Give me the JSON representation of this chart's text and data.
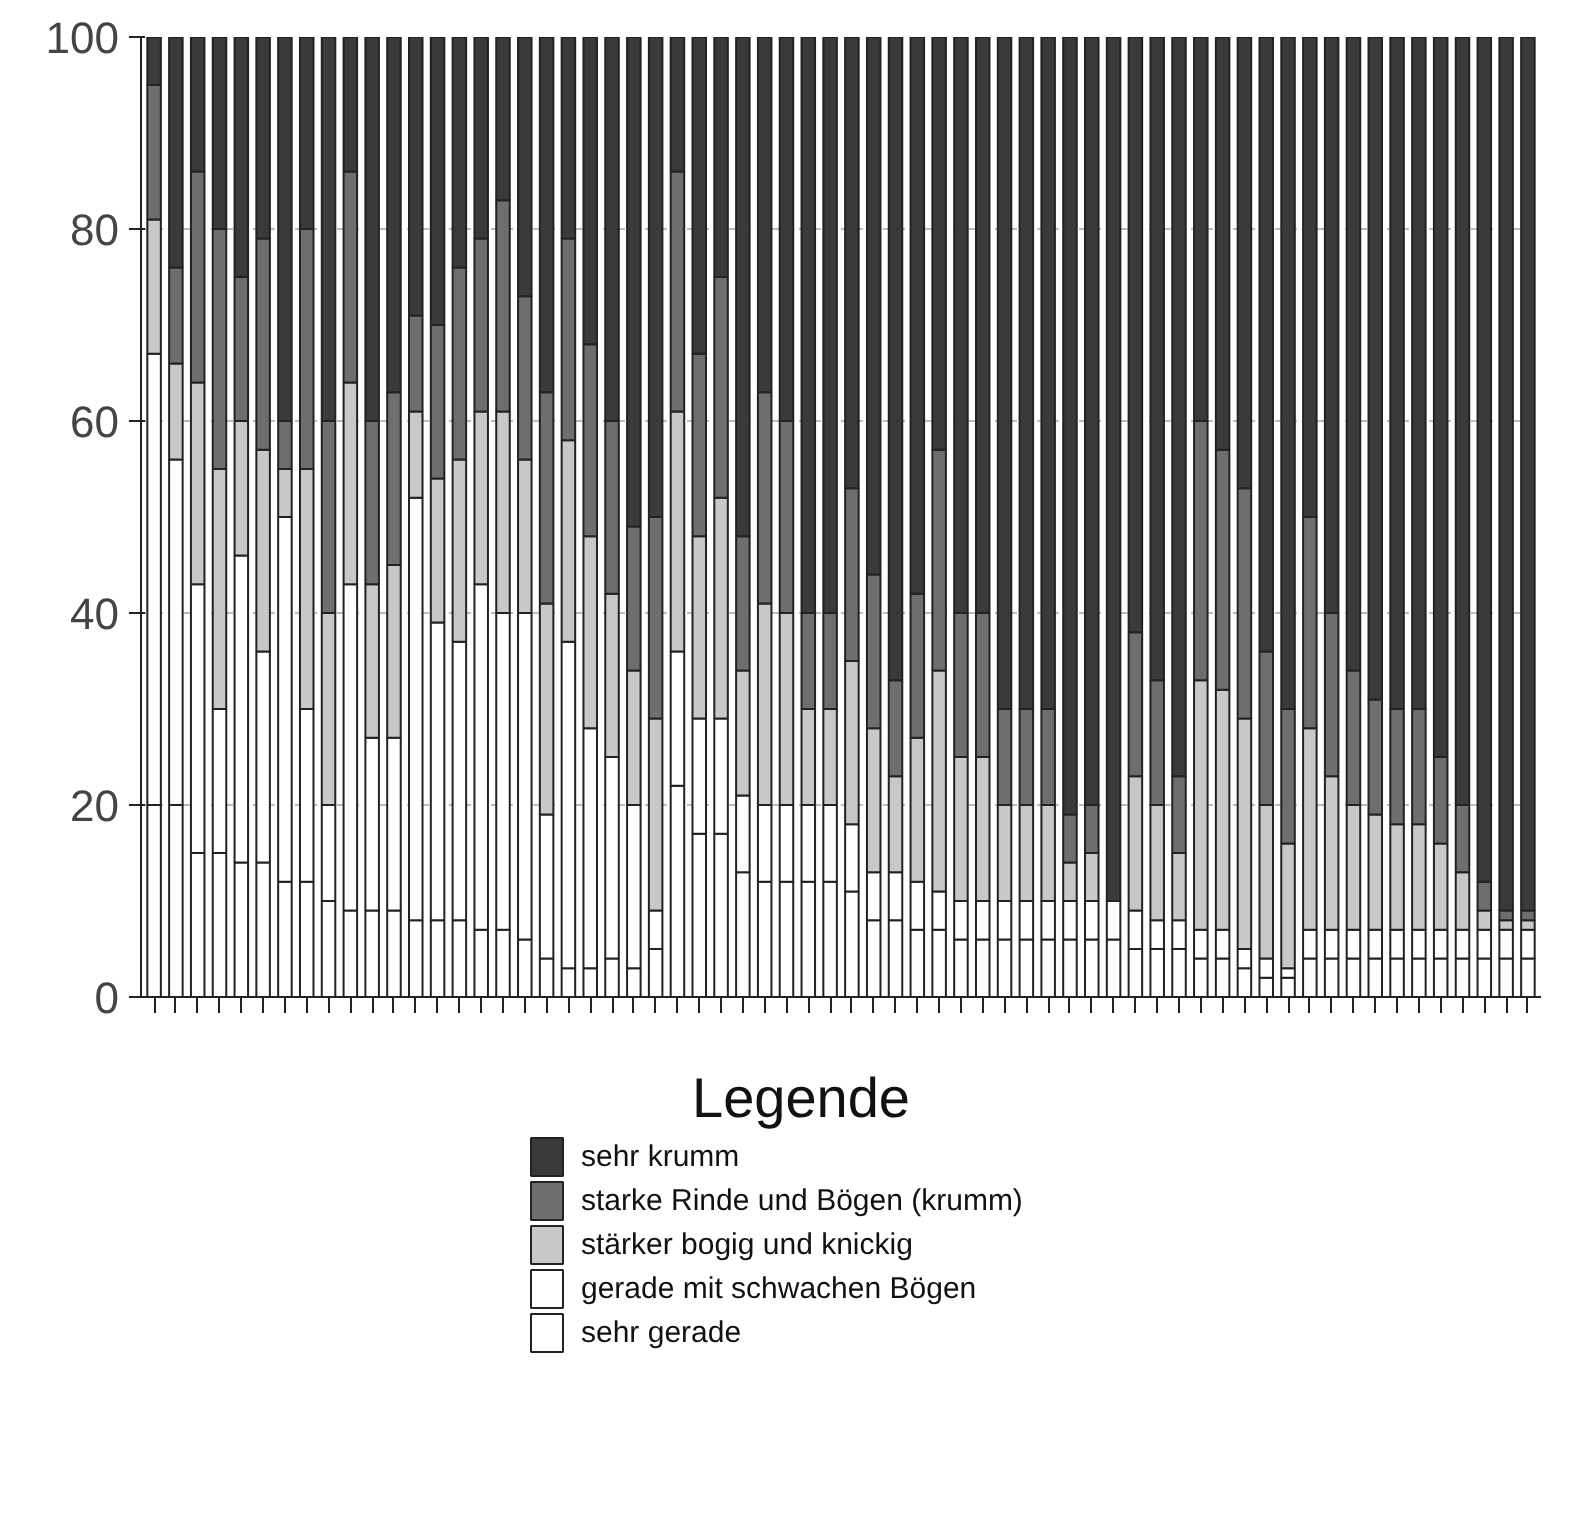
{
  "chart_data": {
    "type": "bar",
    "stacked": true,
    "legend_title": "Legende",
    "legend": "bottom",
    "grid": "y",
    "tick_labels": "y",
    "ylim": [
      0,
      100
    ],
    "yticks": [
      0,
      20,
      40,
      60,
      80,
      100
    ],
    "categories": [
      null,
      null,
      null,
      null,
      null,
      null,
      null,
      null,
      null,
      null,
      null,
      null,
      null,
      null,
      null,
      null,
      null,
      null,
      null,
      null,
      null,
      null,
      null,
      null,
      null,
      null,
      null,
      null,
      null,
      null,
      null,
      null,
      null,
      null,
      null,
      null,
      null,
      null,
      null,
      null,
      null,
      null,
      null,
      null,
      null,
      null,
      null,
      null,
      null,
      null,
      null,
      null,
      null,
      null,
      null,
      null,
      null,
      null,
      null,
      null,
      null,
      null,
      null,
      null
    ],
    "series": [
      {
        "name": "sehr gerade",
        "color": "#ffffff",
        "values": [
          20,
          20,
          15,
          15,
          14,
          14,
          12,
          12,
          10,
          9,
          9,
          9,
          8,
          8,
          8,
          7,
          7,
          6,
          4,
          3,
          3,
          4,
          3,
          5,
          22,
          17,
          17,
          13,
          12,
          12,
          12,
          12,
          11,
          8,
          8,
          7,
          7,
          6,
          6,
          6,
          6,
          6,
          6,
          6,
          6,
          5,
          5,
          5,
          4,
          4,
          3,
          2,
          2,
          4,
          4,
          4,
          4,
          4,
          4,
          4,
          4,
          4,
          4,
          4
        ]
      },
      {
        "name": "gerade mit schwachen Bögen",
        "color": "#ffffff",
        "values": [
          47,
          36,
          28,
          15,
          32,
          22,
          38,
          18,
          10,
          34,
          18,
          18,
          44,
          31,
          29,
          36,
          33,
          34,
          15,
          34,
          25,
          21,
          17,
          4,
          14,
          12,
          12,
          8,
          8,
          8,
          8,
          8,
          7,
          5,
          5,
          5,
          4,
          4,
          4,
          4,
          4,
          4,
          4,
          4,
          4,
          4,
          3,
          3,
          3,
          3,
          2,
          2,
          1,
          3,
          3,
          3,
          3,
          3,
          3,
          3,
          3,
          3,
          3,
          3
        ]
      },
      {
        "name": "stärker bogig und knickig",
        "color": "#c8c8c8",
        "values": [
          14,
          10,
          21,
          25,
          14,
          21,
          5,
          25,
          20,
          21,
          16,
          18,
          9,
          15,
          19,
          18,
          21,
          16,
          22,
          21,
          20,
          17,
          14,
          20,
          25,
          19,
          23,
          13,
          21,
          20,
          10,
          10,
          17,
          15,
          10,
          15,
          23,
          15,
          15,
          10,
          10,
          10,
          4,
          5,
          0,
          14,
          12,
          7,
          26,
          25,
          24,
          16,
          13,
          21,
          16,
          13,
          12,
          11,
          11,
          9,
          6,
          2,
          1,
          1
        ]
      },
      {
        "name": "starke Rinde und Bögen (krumm)",
        "color": "#6e6e6e",
        "values": [
          14,
          10,
          22,
          25,
          15,
          22,
          5,
          25,
          20,
          22,
          17,
          18,
          10,
          16,
          20,
          18,
          22,
          17,
          22,
          21,
          20,
          18,
          15,
          21,
          25,
          19,
          23,
          14,
          22,
          20,
          10,
          10,
          18,
          16,
          10,
          15,
          23,
          15,
          15,
          10,
          10,
          10,
          5,
          5,
          0,
          15,
          13,
          8,
          27,
          25,
          24,
          16,
          14,
          22,
          17,
          14,
          12,
          12,
          12,
          9,
          7,
          3,
          1,
          1
        ]
      },
      {
        "name": "sehr krumm",
        "color": "#3a3a3a",
        "values": [
          5,
          24,
          14,
          20,
          25,
          21,
          40,
          20,
          40,
          14,
          40,
          37,
          29,
          30,
          24,
          21,
          17,
          27,
          37,
          21,
          32,
          40,
          51,
          50,
          14,
          33,
          25,
          52,
          37,
          40,
          60,
          60,
          47,
          56,
          67,
          58,
          43,
          60,
          60,
          70,
          70,
          70,
          81,
          80,
          90,
          62,
          67,
          77,
          40,
          43,
          47,
          64,
          70,
          50,
          60,
          66,
          69,
          70,
          70,
          75,
          80,
          88,
          91,
          91
        ]
      }
    ]
  }
}
